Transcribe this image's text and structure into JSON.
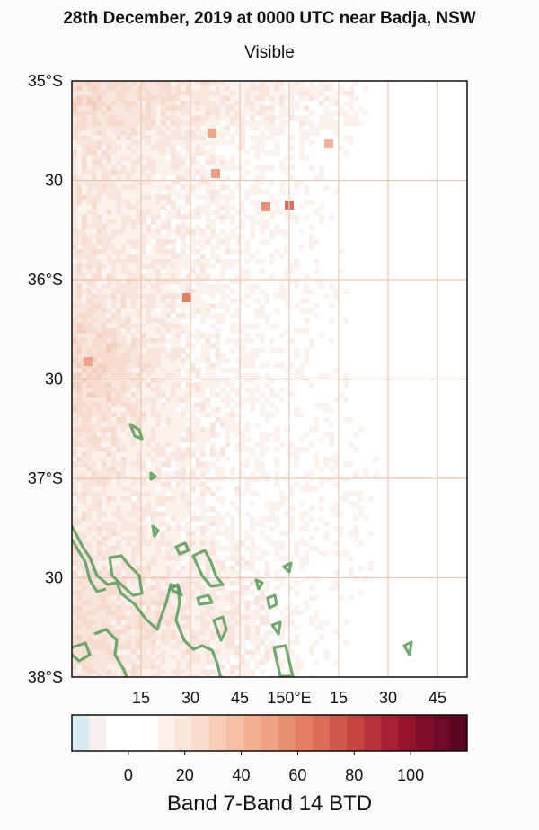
{
  "title": "28th December, 2019 at 0000 UTC near Badja, NSW",
  "subtitle": "Visible",
  "map": {
    "lat_ticks": [
      {
        "value": -35.0,
        "label": "35°S"
      },
      {
        "value": -35.5,
        "label": "30"
      },
      {
        "value": -36.0,
        "label": "36°S"
      },
      {
        "value": -36.5,
        "label": "30"
      },
      {
        "value": -37.0,
        "label": "37°S"
      },
      {
        "value": -37.5,
        "label": "30"
      },
      {
        "value": -38.0,
        "label": "38°S"
      }
    ],
    "lon_ticks": [
      {
        "value": 149.25,
        "label": "15"
      },
      {
        "value": 149.5,
        "label": "30"
      },
      {
        "value": 149.75,
        "label": "45"
      },
      {
        "value": 150.0,
        "label": "150°E"
      },
      {
        "value": 150.25,
        "label": "15"
      },
      {
        "value": 150.5,
        "label": "30"
      },
      {
        "value": 150.75,
        "label": "45"
      }
    ],
    "lon_range": [
      148.9,
      150.9
    ],
    "lat_range": [
      -38.0,
      -35.0
    ],
    "gridlines": true
  },
  "colorbar": {
    "label": "Band 7-Band 14 BTD",
    "ticks": [
      0,
      20,
      40,
      60,
      80,
      100
    ],
    "range": [
      -20,
      120
    ],
    "colors": [
      "#d9ebf2",
      "#f7f0ee",
      "#ffffff",
      "#ffffff",
      "#ffffff",
      "#fdf0ea",
      "#fbe6dc",
      "#f9dccd",
      "#f7cdb9",
      "#f5bfa5",
      "#f2b093",
      "#eea283",
      "#e89072",
      "#e27f64",
      "#da6c58",
      "#d0594d",
      "#c54543",
      "#b8323b",
      "#a82033",
      "#96152e",
      "#82102b",
      "#6e0b27",
      "#5c0622"
    ]
  }
}
